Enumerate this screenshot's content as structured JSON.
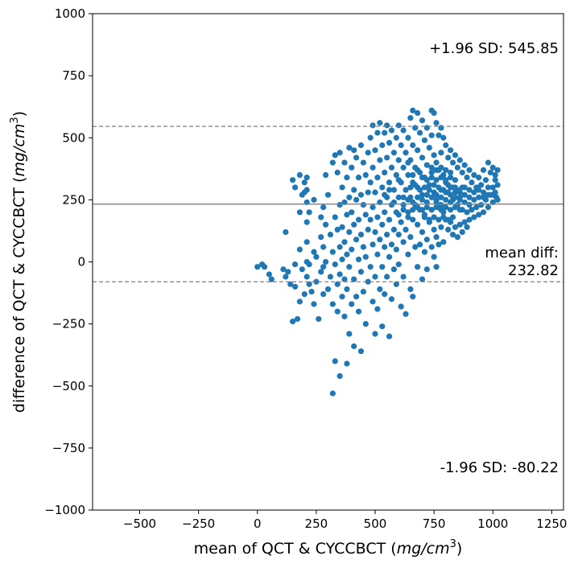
{
  "chart_data": {
    "type": "scatter",
    "title": "",
    "xlabel": "mean of QCT & CYCCBCT (mg/cm³)",
    "xlabel_parts": {
      "prefix": "mean of QCT & CYCCBCT (",
      "unit": "mg/cm",
      "sup": "3",
      "suffix": ")"
    },
    "ylabel": "difference of QCT & CYCCBCT (mg/cm³)",
    "ylabel_parts": {
      "prefix": "difference of QCT & CYCCBCT (",
      "unit": "mg/cm",
      "sup": "3",
      "suffix": ")"
    },
    "xlim": [
      -700,
      1300
    ],
    "ylim": [
      -1000,
      1000
    ],
    "x_ticks": [
      -500,
      -250,
      0,
      250,
      500,
      750,
      1000,
      1250
    ],
    "x_tick_labels": [
      "−500",
      "−250",
      "0",
      "250",
      "500",
      "750",
      "1000",
      "1250"
    ],
    "y_ticks": [
      -1000,
      -750,
      -500,
      -250,
      0,
      250,
      500,
      750,
      1000
    ],
    "y_tick_labels": [
      "−1000",
      "−750",
      "−500",
      "−250",
      "0",
      "250",
      "500",
      "750",
      "1000"
    ],
    "grid": false,
    "marker_color": "#1f77b4",
    "line_color": "#808080",
    "mean_diff": 232.82,
    "upper_loa": 545.85,
    "lower_loa": -80.22,
    "annotations": {
      "upper": "+1.96 SD: 545.85",
      "mean_line1": "mean diff:",
      "mean_line2": "232.82",
      "lower": "-1.96 SD: -80.22"
    },
    "points": [
      [
        0,
        -20
      ],
      [
        20,
        -10
      ],
      [
        30,
        -20
      ],
      [
        50,
        -50
      ],
      [
        60,
        -70
      ],
      [
        110,
        -30
      ],
      [
        120,
        120
      ],
      [
        120,
        -60
      ],
      [
        130,
        -40
      ],
      [
        140,
        -90
      ],
      [
        150,
        330
      ],
      [
        150,
        -240
      ],
      [
        160,
        300
      ],
      [
        160,
        -10
      ],
      [
        160,
        -100
      ],
      [
        170,
        -230
      ],
      [
        180,
        350
      ],
      [
        180,
        200
      ],
      [
        180,
        -160
      ],
      [
        180,
        50
      ],
      [
        190,
        270
      ],
      [
        190,
        -30
      ],
      [
        200,
        320
      ],
      [
        200,
        280
      ],
      [
        200,
        -130
      ],
      [
        210,
        340
      ],
      [
        210,
        290
      ],
      [
        210,
        240
      ],
      [
        210,
        160
      ],
      [
        210,
        80
      ],
      [
        210,
        0
      ],
      [
        210,
        -60
      ],
      [
        220,
        200
      ],
      [
        220,
        -10
      ],
      [
        220,
        -90
      ],
      [
        230,
        -120
      ],
      [
        240,
        250
      ],
      [
        240,
        40
      ],
      [
        240,
        -170
      ],
      [
        250,
        20
      ],
      [
        250,
        -80
      ],
      [
        260,
        -230
      ],
      [
        270,
        180
      ],
      [
        270,
        100
      ],
      [
        270,
        -40
      ],
      [
        280,
        220
      ],
      [
        280,
        60
      ],
      [
        280,
        -20
      ],
      [
        280,
        -130
      ],
      [
        290,
        350
      ],
      [
        290,
        150
      ],
      [
        290,
        0
      ],
      [
        300,
        270
      ],
      [
        300,
        -110
      ],
      [
        310,
        110
      ],
      [
        310,
        -60
      ],
      [
        320,
        400
      ],
      [
        320,
        40
      ],
      [
        320,
        -170
      ],
      [
        320,
        -530
      ],
      [
        330,
        430
      ],
      [
        330,
        180
      ],
      [
        330,
        -10
      ],
      [
        330,
        -400
      ],
      [
        340,
        360
      ],
      [
        340,
        130
      ],
      [
        340,
        -90
      ],
      [
        340,
        -200
      ],
      [
        350,
        440
      ],
      [
        350,
        230
      ],
      [
        350,
        60
      ],
      [
        350,
        -50
      ],
      [
        350,
        -460
      ],
      [
        360,
        300
      ],
      [
        360,
        140
      ],
      [
        360,
        10
      ],
      [
        360,
        -140
      ],
      [
        370,
        400
      ],
      [
        370,
        240
      ],
      [
        370,
        80
      ],
      [
        370,
        -70
      ],
      [
        370,
        -220
      ],
      [
        380,
        340
      ],
      [
        380,
        190
      ],
      [
        380,
        30
      ],
      [
        380,
        -110
      ],
      [
        380,
        -410
      ],
      [
        390,
        460
      ],
      [
        390,
        260
      ],
      [
        390,
        120
      ],
      [
        390,
        -20
      ],
      [
        390,
        -290
      ],
      [
        400,
        380
      ],
      [
        400,
        200
      ],
      [
        400,
        50
      ],
      [
        400,
        -170
      ],
      [
        410,
        450
      ],
      [
        410,
        290
      ],
      [
        410,
        150
      ],
      [
        410,
        -70
      ],
      [
        410,
        -340
      ],
      [
        420,
        420
      ],
      [
        420,
        250
      ],
      [
        420,
        90
      ],
      [
        420,
        -140
      ],
      [
        430,
        340
      ],
      [
        430,
        170
      ],
      [
        430,
        10
      ],
      [
        430,
        -200
      ],
      [
        440,
        470
      ],
      [
        440,
        270
      ],
      [
        440,
        110
      ],
      [
        440,
        -40
      ],
      [
        440,
        -360
      ],
      [
        450,
        400
      ],
      [
        450,
        230
      ],
      [
        450,
        60
      ],
      [
        450,
        -120
      ],
      [
        460,
        350
      ],
      [
        460,
        190
      ],
      [
        460,
        20
      ],
      [
        460,
        -250
      ],
      [
        470,
        440
      ],
      [
        470,
        280
      ],
      [
        470,
        130
      ],
      [
        470,
        -80
      ],
      [
        480,
        500
      ],
      [
        480,
        320
      ],
      [
        480,
        170
      ],
      [
        480,
        -20
      ],
      [
        490,
        550
      ],
      [
        490,
        380
      ],
      [
        490,
        220
      ],
      [
        490,
        70
      ],
      [
        490,
        -160
      ],
      [
        500,
        450
      ],
      [
        500,
        280
      ],
      [
        500,
        120
      ],
      [
        500,
        -60
      ],
      [
        500,
        -290
      ],
      [
        510,
        520
      ],
      [
        510,
        340
      ],
      [
        510,
        180
      ],
      [
        510,
        30
      ],
      [
        510,
        -190
      ],
      [
        520,
        560
      ],
      [
        520,
        410
      ],
      [
        520,
        240
      ],
      [
        520,
        90
      ],
      [
        520,
        -110
      ],
      [
        530,
        470
      ],
      [
        530,
        300
      ],
      [
        530,
        150
      ],
      [
        530,
        -20
      ],
      [
        530,
        -260
      ],
      [
        540,
        520
      ],
      [
        540,
        360
      ],
      [
        540,
        200
      ],
      [
        540,
        60
      ],
      [
        540,
        -130
      ],
      [
        550,
        550
      ],
      [
        550,
        420
      ],
      [
        550,
        260
      ],
      [
        550,
        110
      ],
      [
        550,
        -60
      ],
      [
        560,
        480
      ],
      [
        560,
        320
      ],
      [
        560,
        170
      ],
      [
        560,
        20
      ],
      [
        560,
        -300
      ],
      [
        570,
        530
      ],
      [
        570,
        380
      ],
      [
        570,
        230
      ],
      [
        570,
        70
      ],
      [
        570,
        -150
      ],
      [
        580,
        440
      ],
      [
        580,
        290
      ],
      [
        580,
        130
      ],
      [
        580,
        -30
      ],
      [
        590,
        500
      ],
      [
        590,
        350
      ],
      [
        590,
        200
      ],
      [
        590,
        50
      ],
      [
        590,
        -90
      ],
      [
        600,
        550
      ],
      [
        600,
        410
      ],
      [
        600,
        260
      ],
      [
        600,
        110
      ],
      [
        600,
        -10
      ],
      [
        610,
        470
      ],
      [
        610,
        320
      ],
      [
        610,
        160
      ],
      [
        610,
        -180
      ],
      [
        620,
        530
      ],
      [
        620,
        380
      ],
      [
        620,
        230
      ],
      [
        620,
        80
      ],
      [
        620,
        -60
      ],
      [
        630,
        440
      ],
      [
        630,
        290
      ],
      [
        630,
        130
      ],
      [
        630,
        -210
      ],
      [
        640,
        500
      ],
      [
        640,
        350
      ],
      [
        640,
        200
      ],
      [
        640,
        30
      ],
      [
        650,
        580
      ],
      [
        650,
        410
      ],
      [
        650,
        260
      ],
      [
        650,
        100
      ],
      [
        650,
        -110
      ],
      [
        660,
        610
      ],
      [
        660,
        470
      ],
      [
        660,
        320
      ],
      [
        660,
        170
      ],
      [
        660,
        -140
      ],
      [
        670,
        540
      ],
      [
        670,
        380
      ],
      [
        670,
        230
      ],
      [
        670,
        60
      ],
      [
        680,
        600
      ],
      [
        680,
        450
      ],
      [
        680,
        300
      ],
      [
        680,
        150
      ],
      [
        680,
        -20
      ],
      [
        690,
        520
      ],
      [
        690,
        360
      ],
      [
        690,
        210
      ],
      [
        690,
        70
      ],
      [
        700,
        570
      ],
      [
        700,
        420
      ],
      [
        700,
        270
      ],
      [
        700,
        120
      ],
      [
        700,
        -70
      ],
      [
        710,
        490
      ],
      [
        710,
        340
      ],
      [
        710,
        190
      ],
      [
        710,
        40
      ],
      [
        720,
        540
      ],
      [
        720,
        390
      ],
      [
        720,
        240
      ],
      [
        720,
        90
      ],
      [
        720,
        -30
      ],
      [
        730,
        460
      ],
      [
        730,
        310
      ],
      [
        730,
        160
      ],
      [
        740,
        610
      ],
      [
        740,
        510
      ],
      [
        740,
        360
      ],
      [
        740,
        210
      ],
      [
        740,
        60
      ],
      [
        750,
        600
      ],
      [
        750,
        430
      ],
      [
        750,
        280
      ],
      [
        750,
        130
      ],
      [
        750,
        20
      ],
      [
        760,
        560
      ],
      [
        760,
        400
      ],
      [
        760,
        250
      ],
      [
        760,
        100
      ],
      [
        760,
        -20
      ],
      [
        770,
        510
      ],
      [
        770,
        370
      ],
      [
        770,
        220
      ],
      [
        770,
        70
      ],
      [
        780,
        540
      ],
      [
        780,
        440
      ],
      [
        780,
        290
      ],
      [
        780,
        140
      ],
      [
        790,
        500
      ],
      [
        790,
        350
      ],
      [
        790,
        200
      ],
      [
        790,
        80
      ],
      [
        800,
        470
      ],
      [
        800,
        320
      ],
      [
        800,
        170
      ],
      [
        810,
        420
      ],
      [
        810,
        280
      ],
      [
        810,
        130
      ],
      [
        820,
        450
      ],
      [
        820,
        300
      ],
      [
        820,
        160
      ],
      [
        830,
        400
      ],
      [
        830,
        250
      ],
      [
        830,
        110
      ],
      [
        840,
        430
      ],
      [
        840,
        280
      ],
      [
        840,
        140
      ],
      [
        850,
        380
      ],
      [
        850,
        230
      ],
      [
        850,
        100
      ],
      [
        860,
        410
      ],
      [
        860,
        260
      ],
      [
        860,
        150
      ],
      [
        870,
        360
      ],
      [
        870,
        210
      ],
      [
        870,
        120
      ],
      [
        880,
        390
      ],
      [
        880,
        240
      ],
      [
        880,
        160
      ],
      [
        890,
        340
      ],
      [
        890,
        200
      ],
      [
        890,
        140
      ],
      [
        900,
        370
      ],
      [
        900,
        230
      ],
      [
        900,
        170
      ],
      [
        910,
        320
      ],
      [
        910,
        210
      ],
      [
        920,
        350
      ],
      [
        920,
        250
      ],
      [
        920,
        180
      ],
      [
        930,
        300
      ],
      [
        930,
        220
      ],
      [
        940,
        340
      ],
      [
        940,
        260
      ],
      [
        940,
        190
      ],
      [
        950,
        310
      ],
      [
        950,
        230
      ],
      [
        960,
        370
      ],
      [
        960,
        280
      ],
      [
        960,
        200
      ],
      [
        970,
        330
      ],
      [
        970,
        250
      ],
      [
        980,
        400
      ],
      [
        980,
        300
      ],
      [
        980,
        220
      ],
      [
        990,
        360
      ],
      [
        990,
        270
      ],
      [
        1000,
        380
      ],
      [
        1000,
        300
      ],
      [
        1000,
        240
      ],
      [
        1010,
        350
      ],
      [
        1010,
        280
      ],
      [
        1020,
        370
      ],
      [
        1020,
        310
      ],
      [
        1020,
        250
      ],
      [
        620,
        260
      ],
      [
        640,
        250
      ],
      [
        660,
        240
      ],
      [
        680,
        260
      ],
      [
        700,
        250
      ],
      [
        720,
        270
      ],
      [
        740,
        260
      ],
      [
        760,
        270
      ],
      [
        780,
        260
      ],
      [
        800,
        250
      ],
      [
        820,
        270
      ],
      [
        840,
        260
      ],
      [
        860,
        250
      ],
      [
        880,
        270
      ],
      [
        900,
        260
      ],
      [
        650,
        300
      ],
      [
        670,
        310
      ],
      [
        690,
        290
      ],
      [
        710,
        300
      ],
      [
        730,
        290
      ],
      [
        750,
        310
      ],
      [
        770,
        300
      ],
      [
        790,
        290
      ],
      [
        810,
        310
      ],
      [
        830,
        300
      ],
      [
        850,
        290
      ],
      [
        870,
        300
      ],
      [
        660,
        210
      ],
      [
        680,
        220
      ],
      [
        700,
        210
      ],
      [
        720,
        220
      ],
      [
        740,
        210
      ],
      [
        760,
        220
      ],
      [
        780,
        210
      ],
      [
        800,
        220
      ],
      [
        820,
        210
      ],
      [
        840,
        220
      ],
      [
        860,
        210
      ],
      [
        700,
        340
      ],
      [
        720,
        330
      ],
      [
        740,
        340
      ],
      [
        760,
        330
      ],
      [
        780,
        340
      ],
      [
        800,
        330
      ],
      [
        820,
        340
      ],
      [
        840,
        330
      ],
      [
        710,
        180
      ],
      [
        730,
        170
      ],
      [
        750,
        180
      ],
      [
        770,
        170
      ],
      [
        790,
        180
      ],
      [
        810,
        170
      ],
      [
        830,
        180
      ],
      [
        740,
        380
      ],
      [
        760,
        370
      ],
      [
        780,
        380
      ],
      [
        800,
        370
      ],
      [
        820,
        360
      ],
      [
        600,
        330
      ],
      [
        580,
        240
      ],
      [
        560,
        290
      ],
      [
        540,
        270
      ],
      [
        620,
        210
      ],
      [
        640,
        180
      ],
      [
        660,
        350
      ],
      [
        680,
        370
      ],
      [
        640,
        400
      ],
      [
        600,
        190
      ],
      [
        760,
        240
      ],
      [
        780,
        230
      ],
      [
        800,
        280
      ],
      [
        820,
        240
      ],
      [
        840,
        300
      ],
      [
        860,
        280
      ],
      [
        880,
        300
      ],
      [
        900,
        290
      ],
      [
        920,
        280
      ],
      [
        940,
        290
      ],
      [
        960,
        260
      ],
      [
        980,
        270
      ],
      [
        1000,
        270
      ],
      [
        1010,
        330
      ],
      [
        1015,
        260
      ]
    ]
  }
}
